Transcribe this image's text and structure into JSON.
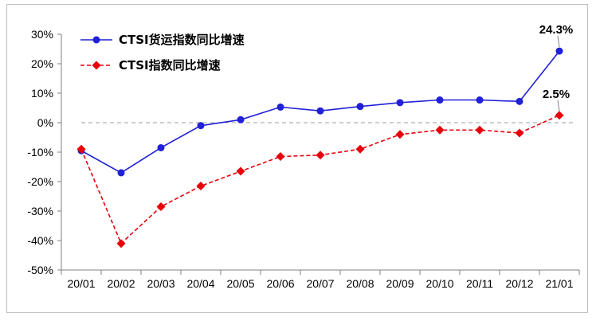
{
  "chart_data": {
    "type": "line",
    "x": [
      "20/01",
      "20/02",
      "20/03",
      "20/04",
      "20/05",
      "20/06",
      "20/07",
      "20/08",
      "20/09",
      "20/10",
      "20/11",
      "20/12",
      "21/01"
    ],
    "series": [
      {
        "name": "CTSI货运指数同比增速",
        "values": [
          -9.5,
          -17,
          -8.5,
          -1,
          1,
          5.3,
          4,
          5.5,
          6.8,
          7.7,
          7.7,
          7.2,
          24.3
        ],
        "color": "#2020d8",
        "line_style": "solid",
        "marker": "circle"
      },
      {
        "name": "CTSI指数同比增速",
        "values": [
          -9,
          -41,
          -28.5,
          -21.5,
          -16.5,
          -11.5,
          -11,
          -9,
          -4,
          -2.5,
          -2.5,
          -3.5,
          2.5
        ],
        "color": "#e8000b",
        "line_style": "dashed",
        "marker": "diamond"
      }
    ],
    "yticks": [
      "30%",
      "20%",
      "10%",
      "0%",
      "-10%",
      "-20%",
      "-30%",
      "-40%",
      "-50%"
    ],
    "ylim": [
      -50,
      30
    ],
    "zero_line": true,
    "legend_position": "top-left",
    "annotations": [
      {
        "series": 0,
        "index": 12,
        "text": "24.3%"
      },
      {
        "series": 1,
        "index": 12,
        "text": "2.5%"
      }
    ]
  }
}
